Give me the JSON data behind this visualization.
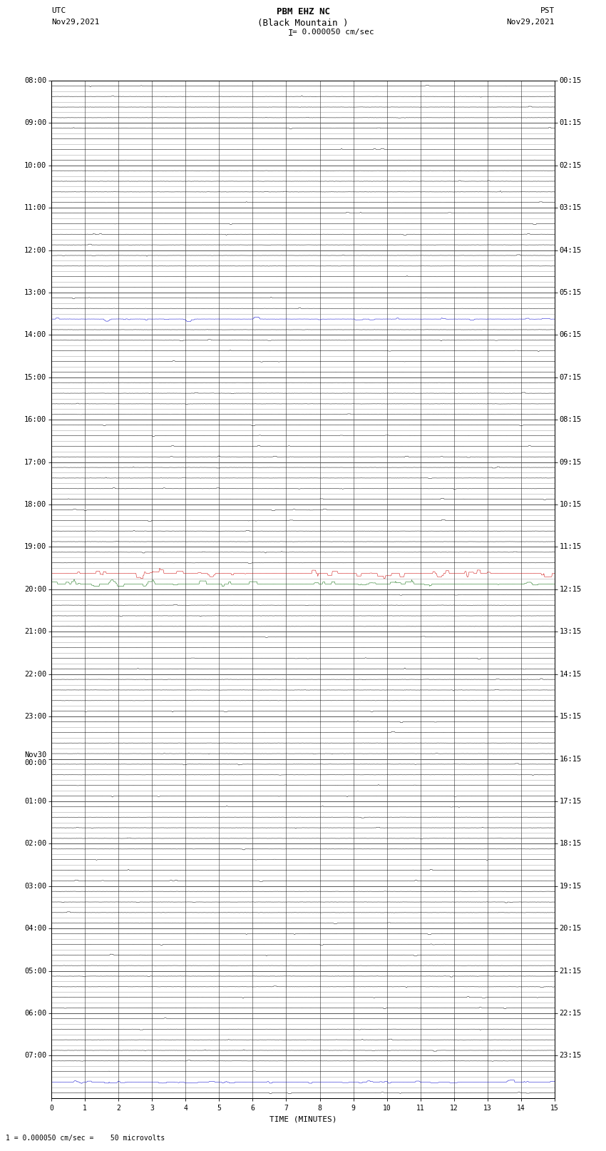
{
  "title_line1": "PBM EHZ NC",
  "title_line2": "(Black Mountain )",
  "title_line3": "I = 0.000050 cm/sec",
  "left_header_line1": "UTC",
  "left_header_line2": "Nov29,2021",
  "right_header_line1": "PST",
  "right_header_line2": "Nov29,2021",
  "xlabel": "TIME (MINUTES)",
  "bottom_label": "1 = 0.000050 cm/sec =    50 microvolts",
  "utc_hour_labels": [
    "08:00",
    "09:00",
    "10:00",
    "11:00",
    "12:00",
    "13:00",
    "14:00",
    "15:00",
    "16:00",
    "17:00",
    "18:00",
    "19:00",
    "20:00",
    "21:00",
    "22:00",
    "23:00",
    "Nov30\n00:00",
    "01:00",
    "02:00",
    "03:00",
    "04:00",
    "05:00",
    "06:00",
    "07:00"
  ],
  "pst_hour_labels": [
    "00:15",
    "01:15",
    "02:15",
    "03:15",
    "04:15",
    "05:15",
    "06:15",
    "07:15",
    "08:15",
    "09:15",
    "10:15",
    "11:15",
    "12:15",
    "13:15",
    "14:15",
    "15:15",
    "16:15",
    "17:15",
    "18:15",
    "19:15",
    "20:15",
    "21:15",
    "22:15",
    "23:15"
  ],
  "n_hours": 24,
  "subrows_per_hour": 4,
  "n_minutes": 15,
  "noise_amplitude": 0.03,
  "background_color": "#ffffff",
  "trace_color": "#000000",
  "grid_color_major": "#555555",
  "grid_color_minor": "#aaaaaa",
  "colored_rows": {
    "22": "#0000cc",
    "46": "#cc0000",
    "47": "#006600",
    "94": "#0000cc"
  },
  "spike_rows": {
    "46": 0.35,
    "47": 0.25,
    "22": 0.12,
    "94": 0.1
  }
}
